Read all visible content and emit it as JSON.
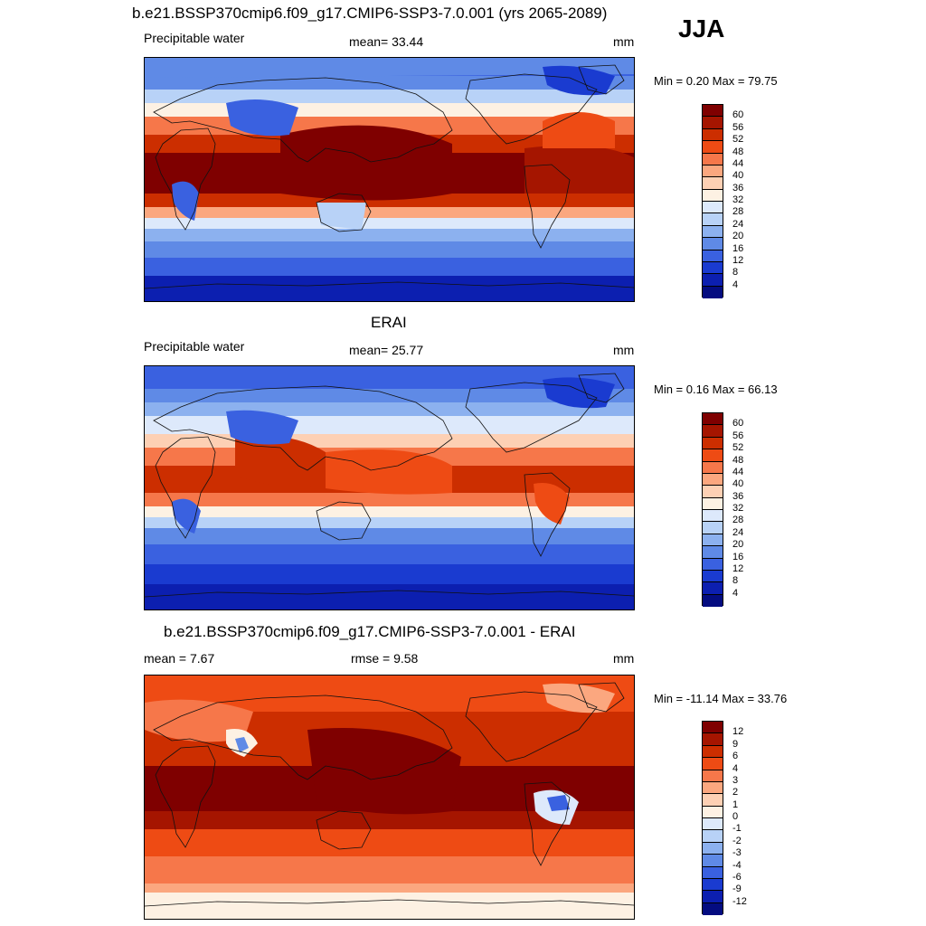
{
  "header": {
    "main_title": "b.e21.BSSP370cmip6.f09_g17.CMIP6-SSP3-7.0.001 (yrs 2065-2089)",
    "season": "JJA"
  },
  "panels": [
    {
      "id": "model",
      "title": "",
      "left_label": "Precipitable water",
      "center_label": "mean=  33.44",
      "units": "mm",
      "minmax": "Min =   0.20 Max =  79.75",
      "scale": "abs"
    },
    {
      "id": "obs",
      "title": "ERAI",
      "left_label": "Precipitable water",
      "center_label": "mean=  25.77",
      "units": "mm",
      "minmax": "Min =   0.16 Max =  66.13",
      "scale": "abs"
    },
    {
      "id": "diff",
      "title": "b.e21.BSSP370cmip6.f09_g17.CMIP6-SSP3-7.0.001 - ERAI",
      "left_label": "mean =   7.67",
      "center_label": "rmse =   9.58",
      "units": "mm",
      "minmax": "Min = -11.14 Max =  33.76",
      "scale": "diff"
    }
  ],
  "colorbars": {
    "abs": {
      "labels": [
        "60",
        "56",
        "52",
        "48",
        "44",
        "40",
        "36",
        "32",
        "28",
        "24",
        "20",
        "16",
        "12",
        "8",
        "4"
      ],
      "colors": [
        "#7f0000",
        "#a51500",
        "#cc2e00",
        "#ee4b14",
        "#f6774a",
        "#fba77f",
        "#fdd0b4",
        "#fdf1e3",
        "#dde9fb",
        "#b8d2f7",
        "#8cb1ef",
        "#5f8ae6",
        "#3a61e0",
        "#1a3bd0",
        "#0c1fb0",
        "#040c80"
      ]
    },
    "diff": {
      "labels": [
        "12",
        "9",
        "6",
        "4",
        "3",
        "2",
        "1",
        "0",
        "-1",
        "-2",
        "-3",
        "-4",
        "-6",
        "-9",
        "-12"
      ],
      "colors": [
        "#7f0000",
        "#a51500",
        "#cc2e00",
        "#ee4b14",
        "#f6774a",
        "#fba77f",
        "#fdd0b4",
        "#fdf1e3",
        "#dde9fb",
        "#b8d2f7",
        "#8cb1ef",
        "#5f8ae6",
        "#3a61e0",
        "#1a3bd0",
        "#0c1fb0",
        "#040c80"
      ]
    }
  }
}
